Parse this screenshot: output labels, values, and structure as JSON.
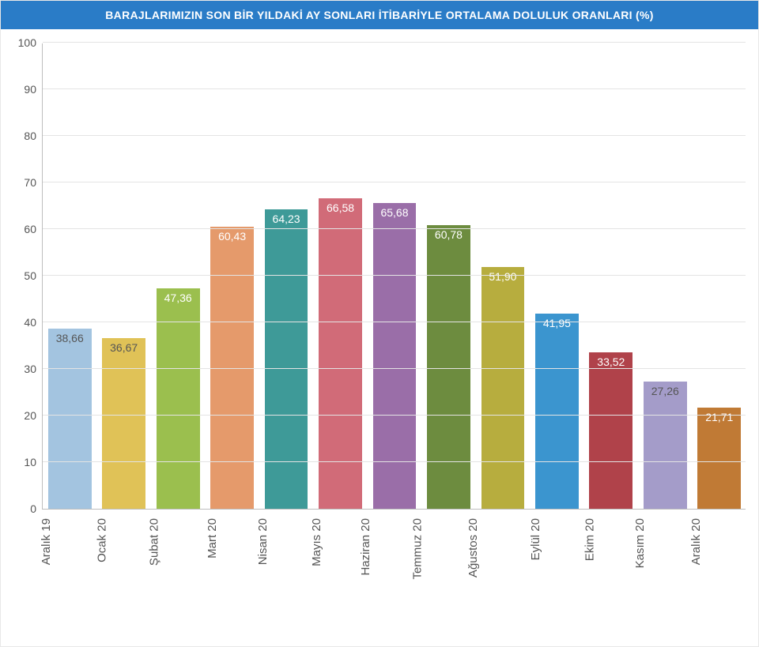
{
  "chart": {
    "type": "bar",
    "title": "BARAJLARIMIZIN SON BİR YILDAKİ AY SONLARI İTİBARİYLE ORTALAMA DOLULUK ORANLARI (%)",
    "title_bar_color": "#2a7cc7",
    "title_text_color": "#ffffff",
    "title_fontsize": 14,
    "background_color": "#ffffff",
    "grid_color": "#e4e4e4",
    "axis_color": "#bdbdbd",
    "ylim": [
      0,
      100
    ],
    "ytick_step": 10,
    "yticks": [
      0,
      10,
      20,
      30,
      40,
      50,
      60,
      70,
      80,
      90,
      100
    ],
    "ytick_fontsize": 14,
    "ytick_color": "#555555",
    "bar_width_ratio": 0.8,
    "bar_label_fontsize": 14,
    "xlabel_fontsize": 15,
    "xlabel_rotation_deg": -90,
    "xlabel_color": "#555555",
    "categories": [
      "Aralık 19",
      "Ocak 20",
      "Şubat 20",
      "Mart 20",
      "Nisan 20",
      "Mayıs 20",
      "Haziran 20",
      "Temmuz 20",
      "Ağustos 20",
      "Eylül 20",
      "Ekim 20",
      "Kasım 20",
      "Aralık 20"
    ],
    "values": [
      38.66,
      36.67,
      47.36,
      60.43,
      64.23,
      66.58,
      65.68,
      60.78,
      51.9,
      41.95,
      33.52,
      27.26,
      21.71
    ],
    "value_labels": [
      "38,66",
      "36,67",
      "47,36",
      "60,43",
      "64,23",
      "66,58",
      "65,68",
      "60,78",
      "51,90",
      "41,95",
      "33,52",
      "27,26",
      "21,71"
    ],
    "bar_colors": [
      "#a3c4e0",
      "#e0c257",
      "#9bbf4e",
      "#e59a6b",
      "#3e9a98",
      "#d16b78",
      "#9a6ea8",
      "#6d8c3f",
      "#b7ad3e",
      "#3b95cf",
      "#b0424a",
      "#a49cc9",
      "#c07a35"
    ],
    "value_label_colors": [
      "#555555",
      "#555555",
      "#ffffff",
      "#ffffff",
      "#ffffff",
      "#ffffff",
      "#ffffff",
      "#ffffff",
      "#ffffff",
      "#ffffff",
      "#ffffff",
      "#555555",
      "#ffffff"
    ]
  }
}
